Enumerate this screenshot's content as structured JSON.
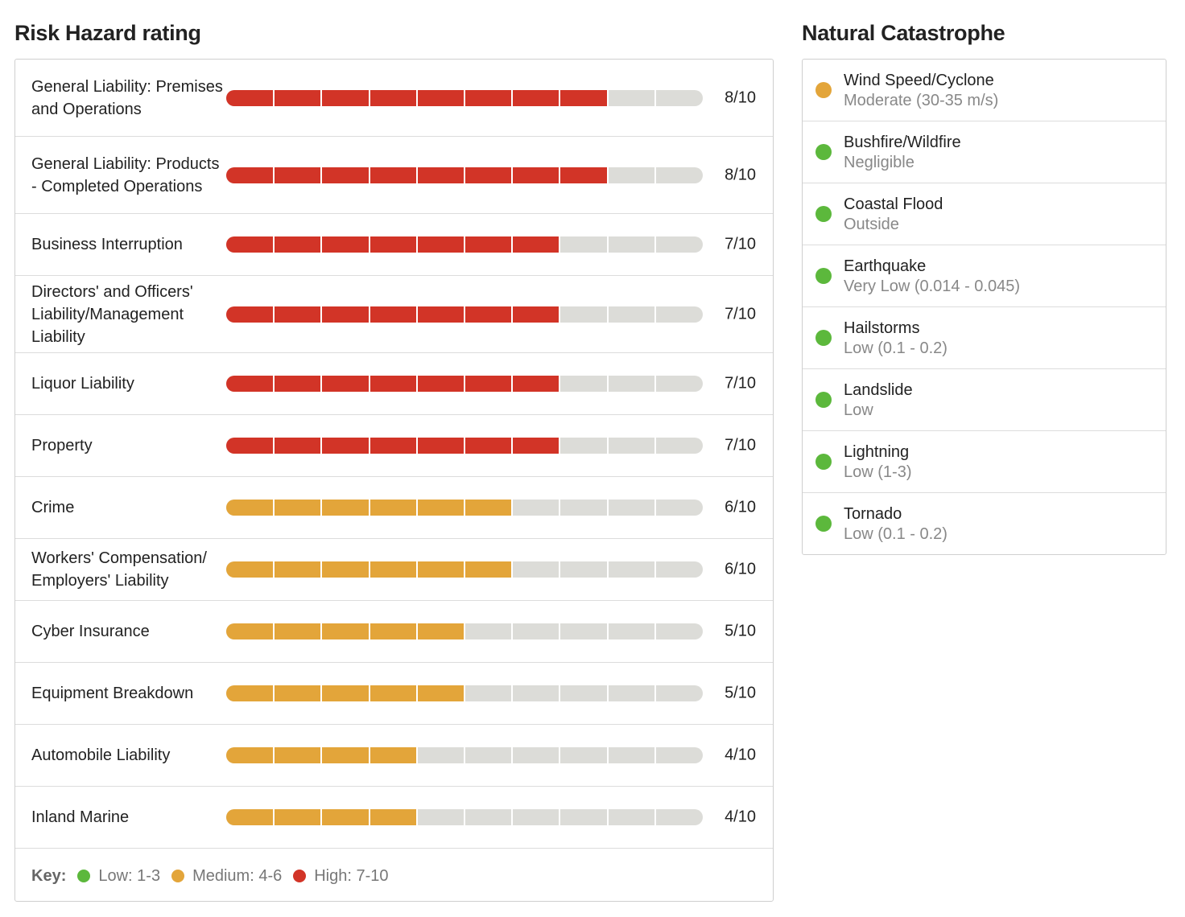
{
  "risk_section": {
    "title": "Risk Hazard rating",
    "max_score": 10,
    "rows": [
      {
        "label": "General Liability: Premises and Operations",
        "score": 8,
        "score_text": "8/10",
        "level": "high"
      },
      {
        "label": "General Liability: Products - Completed Operations",
        "score": 8,
        "score_text": "8/10",
        "level": "high"
      },
      {
        "label": "Business Interruption",
        "score": 7,
        "score_text": "7/10",
        "level": "high"
      },
      {
        "label": "Directors' and Officers' Liability/Management Liability",
        "score": 7,
        "score_text": "7/10",
        "level": "high"
      },
      {
        "label": "Liquor Liability",
        "score": 7,
        "score_text": "7/10",
        "level": "high"
      },
      {
        "label": "Property",
        "score": 7,
        "score_text": "7/10",
        "level": "high"
      },
      {
        "label": "Crime",
        "score": 6,
        "score_text": "6/10",
        "level": "medium"
      },
      {
        "label": "Workers' Compensation/ Employers' Liability",
        "score": 6,
        "score_text": "6/10",
        "level": "medium"
      },
      {
        "label": "Cyber Insurance",
        "score": 5,
        "score_text": "5/10",
        "level": "medium"
      },
      {
        "label": "Equipment Breakdown",
        "score": 5,
        "score_text": "5/10",
        "level": "medium"
      },
      {
        "label": "Automobile Liability",
        "score": 4,
        "score_text": "4/10",
        "level": "medium"
      },
      {
        "label": "Inland Marine",
        "score": 4,
        "score_text": "4/10",
        "level": "medium"
      }
    ],
    "key": {
      "label": "Key:",
      "items": [
        {
          "text": "Low: 1-3",
          "color": "#5cb83c"
        },
        {
          "text": "Medium: 4-6",
          "color": "#e3a53a"
        },
        {
          "text": "High: 7-10",
          "color": "#d23427"
        }
      ]
    }
  },
  "cat_section": {
    "title": "Natural Catastrophe",
    "items": [
      {
        "name": "Wind Speed/Cyclone",
        "value": "Moderate (30-35 m/s)",
        "color": "#e3a53a"
      },
      {
        "name": "Bushfire/Wildfire",
        "value": "Negligible",
        "color": "#5cb83c"
      },
      {
        "name": "Coastal Flood",
        "value": "Outside",
        "color": "#5cb83c"
      },
      {
        "name": "Earthquake",
        "value": "Very Low (0.014 - 0.045)",
        "color": "#5cb83c"
      },
      {
        "name": "Hailstorms",
        "value": "Low (0.1 - 0.2)",
        "color": "#5cb83c"
      },
      {
        "name": "Landslide",
        "value": "Low",
        "color": "#5cb83c"
      },
      {
        "name": "Lightning",
        "value": "Low (1-3)",
        "color": "#5cb83c"
      },
      {
        "name": "Tornado",
        "value": "Low (0.1 - 0.2)",
        "color": "#5cb83c"
      }
    ]
  },
  "colors": {
    "high": "#d23427",
    "medium": "#e3a53a",
    "low": "#5cb83c",
    "track": "#dcdcd8"
  }
}
